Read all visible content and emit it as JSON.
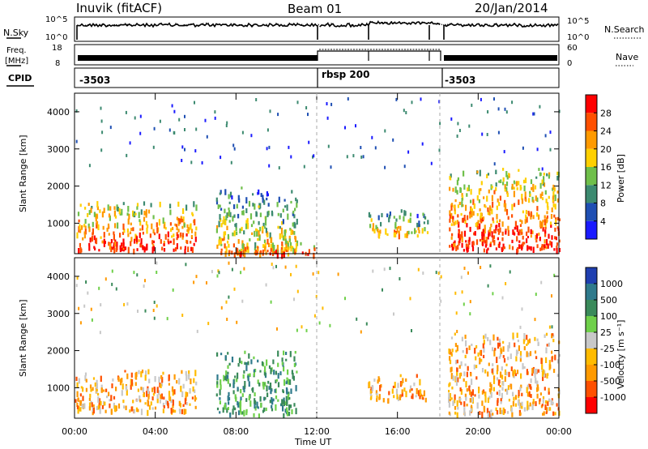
{
  "header": {
    "station": "Inuvik (fitACF)",
    "beam": "Beam 01",
    "date": "20/Jan/2014"
  },
  "param_panels": {
    "nsky": {
      "label": "N.Sky",
      "ticks": [
        "10^5",
        "10^0"
      ]
    },
    "nsearch": {
      "label": "N.Search",
      "ticks": [
        "10^5",
        "10^0"
      ]
    },
    "freq": {
      "label_line1": "Freq.",
      "label_line2": "[MHz]",
      "ticks": [
        "18",
        "8"
      ]
    },
    "nave": {
      "label": "Nave",
      "ticks": [
        "60",
        "0"
      ]
    },
    "cpid": {
      "label": "CPID",
      "segments": [
        "-3503",
        "rbsp 200",
        "-3503"
      ]
    }
  },
  "colors": {
    "power": [
      "#1a1aff",
      "#1f4fb3",
      "#3c8a70",
      "#6fbf4a",
      "#ffd000",
      "#ff9a00",
      "#ff5000",
      "#ff0000"
    ],
    "velocity": [
      "#ff0000",
      "#ff5000",
      "#ff9a00",
      "#ffbb00",
      "#c8c8c8",
      "#6fd04a",
      "#3a8a5a",
      "#2f7a8c",
      "#1f3fb0"
    ]
  },
  "chart_data": [
    {
      "type": "heatmap",
      "title": "",
      "xlabel": "",
      "ylabel": "Slant Range [km]",
      "x_ticks": [
        "00:00",
        "04:00",
        "08:00",
        "12:00",
        "16:00",
        "20:00",
        "00:00"
      ],
      "y_ticks": [
        "1000",
        "2000",
        "3000",
        "4000"
      ],
      "xlim": [
        0,
        24
      ],
      "ylim": [
        180,
        4500
      ],
      "colorbar": {
        "label": "Power [dB]",
        "ticks": [
          "4",
          "8",
          "12",
          "16",
          "20",
          "24",
          "28"
        ],
        "range": [
          0,
          32
        ]
      },
      "regions": [
        {
          "x": [
            0,
            6
          ],
          "y": [
            300,
            1600
          ],
          "level": "high"
        },
        {
          "x": [
            7,
            11
          ],
          "y": [
            200,
            2000
          ],
          "level": "medium"
        },
        {
          "x": [
            8,
            12
          ],
          "y": [
            200,
            500
          ],
          "level": "high"
        },
        {
          "x": [
            14.5,
            17.5
          ],
          "y": [
            700,
            1400
          ],
          "level": "medium"
        },
        {
          "x": [
            18.5,
            24
          ],
          "y": [
            300,
            2500
          ],
          "level": "high"
        }
      ]
    },
    {
      "type": "heatmap",
      "title": "",
      "xlabel": "Time UT",
      "ylabel": "Slant Range [km]",
      "x_ticks": [
        "00:00",
        "04:00",
        "08:00",
        "12:00",
        "16:00",
        "20:00",
        "00:00"
      ],
      "y_ticks": [
        "1000",
        "2000",
        "3000",
        "4000"
      ],
      "xlim": [
        0,
        24
      ],
      "ylim": [
        180,
        4500
      ],
      "colorbar": {
        "label": "Velocity [m s⁻¹]",
        "ticks": [
          "-1000",
          "-500",
          "-100",
          "-25",
          "25",
          "100",
          "500",
          "1000"
        ],
        "range": [
          -1000,
          1000
        ]
      },
      "regions": [
        {
          "x": [
            0,
            6
          ],
          "y": [
            400,
            1500
          ],
          "level": "negative"
        },
        {
          "x": [
            7,
            11
          ],
          "y": [
            300,
            2000
          ],
          "level": "positive"
        },
        {
          "x": [
            14.5,
            17.5
          ],
          "y": [
            700,
            1400
          ],
          "level": "negative"
        },
        {
          "x": [
            18.5,
            24
          ],
          "y": [
            300,
            2500
          ],
          "level": "negative"
        }
      ]
    }
  ]
}
